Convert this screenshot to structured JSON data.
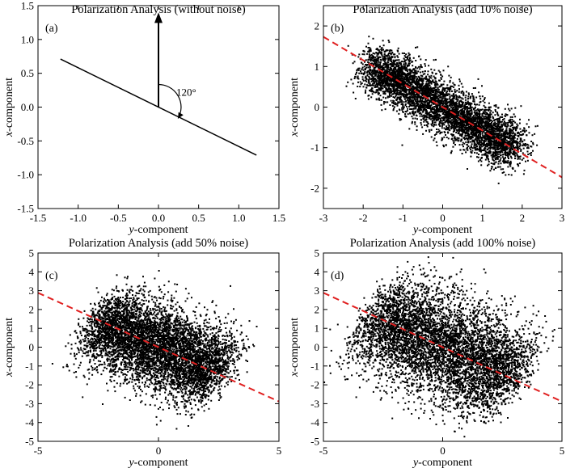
{
  "chart_data": [
    {
      "type": "line",
      "panel_label": "(a)",
      "title": "Polarization Analysis (without noise)",
      "xlabel_prefix": "y",
      "xlabel_suffix": "-component",
      "ylabel_prefix": "x",
      "ylabel_suffix": "-component",
      "xlim": [
        -1.5,
        1.5
      ],
      "ylim": [
        -1.5,
        1.5
      ],
      "xticks": [
        -1.5,
        -1.0,
        -0.5,
        0.0,
        0.5,
        1.0,
        1.5
      ],
      "xtick_labels": [
        "-1.5",
        "-1.0",
        "-0.5",
        "0.0",
        "0.5",
        "1.0",
        "1.5"
      ],
      "yticks": [
        -1.5,
        -1.0,
        -0.5,
        0.0,
        0.5,
        1.0,
        1.5
      ],
      "ytick_labels": [
        "-1.5",
        "-1.0",
        "-0.5",
        "0.0",
        "0.5",
        "1.0",
        "1.5"
      ],
      "series": [
        {
          "name": "polarization line",
          "x": [
            -1.22,
            1.22
          ],
          "y": [
            0.71,
            -0.71
          ],
          "color": "#000000",
          "style": "solid"
        }
      ],
      "vertical_arrow": {
        "x": 0,
        "y_from": 0,
        "y_to": 1.4
      },
      "angle_annotation": {
        "text": "120°",
        "angle_deg": 120
      }
    },
    {
      "type": "scatter",
      "panel_label": "(b)",
      "title": "Polarization Analysis (add 10% noise)",
      "xlabel_prefix": "y",
      "xlabel_suffix": "-component",
      "ylabel_prefix": "x",
      "ylabel_suffix": "-component",
      "xlim": [
        -3,
        3
      ],
      "ylim": [
        -2.5,
        2.5
      ],
      "xticks": [
        -3,
        -2,
        -1,
        0,
        1,
        2,
        3
      ],
      "xtick_labels": [
        "-3",
        "-2",
        "-1",
        "0",
        "1",
        "2",
        "3"
      ],
      "yticks": [
        -2,
        -1,
        0,
        1,
        2
      ],
      "ytick_labels": [
        "-2",
        "-1",
        "0",
        "1",
        "2"
      ],
      "scatter": {
        "slope": -0.577,
        "half_length": 2.0,
        "spread": 0.3,
        "count": 5000,
        "color": "#000000"
      },
      "fit_line": {
        "slope": -0.577,
        "color": "#e02020",
        "style": "dashed"
      }
    },
    {
      "type": "scatter",
      "panel_label": "(c)",
      "title": "Polarization Analysis (add 50% noise)",
      "xlabel_prefix": "y",
      "xlabel_suffix": "-component",
      "ylabel_prefix": "x",
      "ylabel_suffix": "-component",
      "xlim": [
        -5,
        5
      ],
      "ylim": [
        -5,
        5
      ],
      "xticks": [
        -5,
        0,
        5
      ],
      "xtick_labels": [
        "-5",
        "0",
        "5"
      ],
      "yticks": [
        -5,
        -4,
        -3,
        -2,
        -1,
        0,
        1,
        2,
        3,
        4,
        5
      ],
      "ytick_labels": [
        "-5",
        "-4",
        "-3",
        "-2",
        "-1",
        "0",
        "1",
        "2",
        "3",
        "4",
        "5"
      ],
      "scatter": {
        "slope": -0.577,
        "half_length": 2.8,
        "spread": 1.05,
        "count": 6000,
        "color": "#000000"
      },
      "fit_line": {
        "slope": -0.577,
        "color": "#e02020",
        "style": "dashed"
      }
    },
    {
      "type": "scatter",
      "panel_label": "(d)",
      "title": "Polarization Analysis (add 100% noise)",
      "xlabel_prefix": "y",
      "xlabel_suffix": "-component",
      "ylabel_prefix": "x",
      "ylabel_suffix": "-component",
      "xlim": [
        -5,
        5
      ],
      "ylim": [
        -5,
        5
      ],
      "xticks": [
        -5,
        0,
        5
      ],
      "xtick_labels": [
        "-5",
        "0",
        "5"
      ],
      "yticks": [
        -5,
        -4,
        -3,
        -2,
        -1,
        0,
        1,
        2,
        3,
        4,
        5
      ],
      "ytick_labels": [
        "-5",
        "-4",
        "-3",
        "-2",
        "-1",
        "0",
        "1",
        "2",
        "3",
        "4",
        "5"
      ],
      "scatter": {
        "slope": -0.577,
        "half_length": 3.3,
        "spread": 1.3,
        "count": 6000,
        "color": "#000000"
      },
      "fit_line": {
        "slope": -0.577,
        "color": "#e02020",
        "style": "dashed"
      }
    }
  ]
}
